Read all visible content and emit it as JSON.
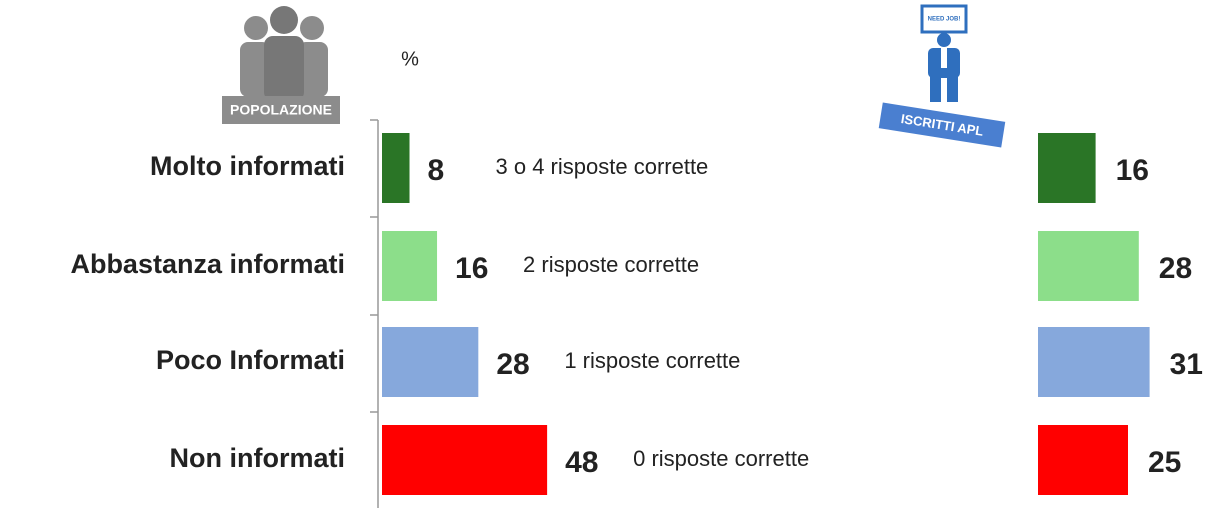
{
  "chart_data": {
    "type": "bar",
    "orientation": "horizontal",
    "unit_label": "%",
    "categories": [
      "Molto informati",
      "Abbastanza informati",
      "Poco Informati",
      "Non informati"
    ],
    "colors": [
      "#2a7526",
      "#8cde8a",
      "#86a8dc",
      "#ff0000"
    ],
    "annotations": [
      "3 o 4 risposte corrette",
      "2 risposte corrette",
      "1 risposte corrette",
      "0 risposte corrette"
    ],
    "series": [
      {
        "name": "POPOLAZIONE",
        "values": [
          8,
          16,
          28,
          48
        ]
      },
      {
        "name": "ISCRITTI APL",
        "values": [
          16,
          28,
          31,
          25
        ]
      }
    ]
  }
}
